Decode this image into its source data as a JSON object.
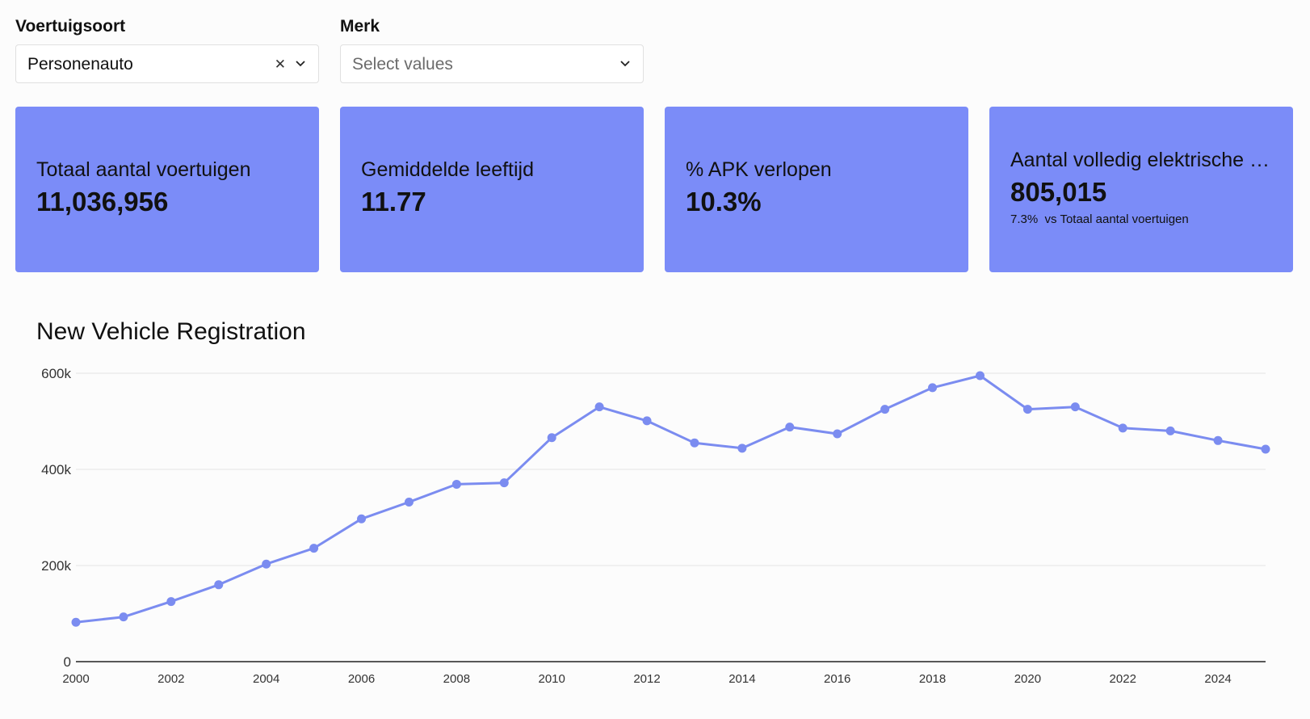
{
  "filters": {
    "vehicle_type": {
      "label": "Voertuigsoort",
      "value": "Personenauto"
    },
    "brand": {
      "label": "Merk",
      "placeholder": "Select values"
    }
  },
  "kpis": [
    {
      "title": "Totaal aantal voertuigen",
      "value": "11,036,956"
    },
    {
      "title": "Gemiddelde leeftijd",
      "value": "11.77"
    },
    {
      "title": "% APK verlopen",
      "value": "10.3%"
    },
    {
      "title": "Aantal volledig elektrische v…",
      "value": "805,015",
      "sub_pct": "7.3%",
      "sub_text": "vs Totaal aantal voertuigen"
    }
  ],
  "chart_data": {
    "type": "line",
    "title": "New Vehicle Registration",
    "x": [
      2000,
      2001,
      2002,
      2003,
      2004,
      2005,
      2006,
      2007,
      2008,
      2009,
      2010,
      2011,
      2012,
      2013,
      2014,
      2015,
      2016,
      2017,
      2018,
      2019,
      2020,
      2021,
      2022,
      2023,
      2024,
      2025
    ],
    "values": [
      82000,
      93000,
      125000,
      160000,
      203000,
      236000,
      297000,
      332000,
      369000,
      372000,
      466000,
      530000,
      501000,
      455000,
      444000,
      488000,
      474000,
      525000,
      570000,
      595000,
      525000,
      530000,
      486000,
      480000,
      460000,
      442000
    ],
    "y_ticks": [
      {
        "value": 0,
        "label": "0"
      },
      {
        "value": 200000,
        "label": "200k"
      },
      {
        "value": 400000,
        "label": "400k"
      },
      {
        "value": 600000,
        "label": "600k"
      }
    ],
    "x_ticks": [
      "2000",
      "2002",
      "2004",
      "2006",
      "2008",
      "2010",
      "2012",
      "2014",
      "2016",
      "2018",
      "2020",
      "2022",
      "2024"
    ],
    "ylim": [
      0,
      600000
    ],
    "xlim": [
      2000,
      2025
    ],
    "grid": true,
    "color": "#7b8cf0"
  }
}
